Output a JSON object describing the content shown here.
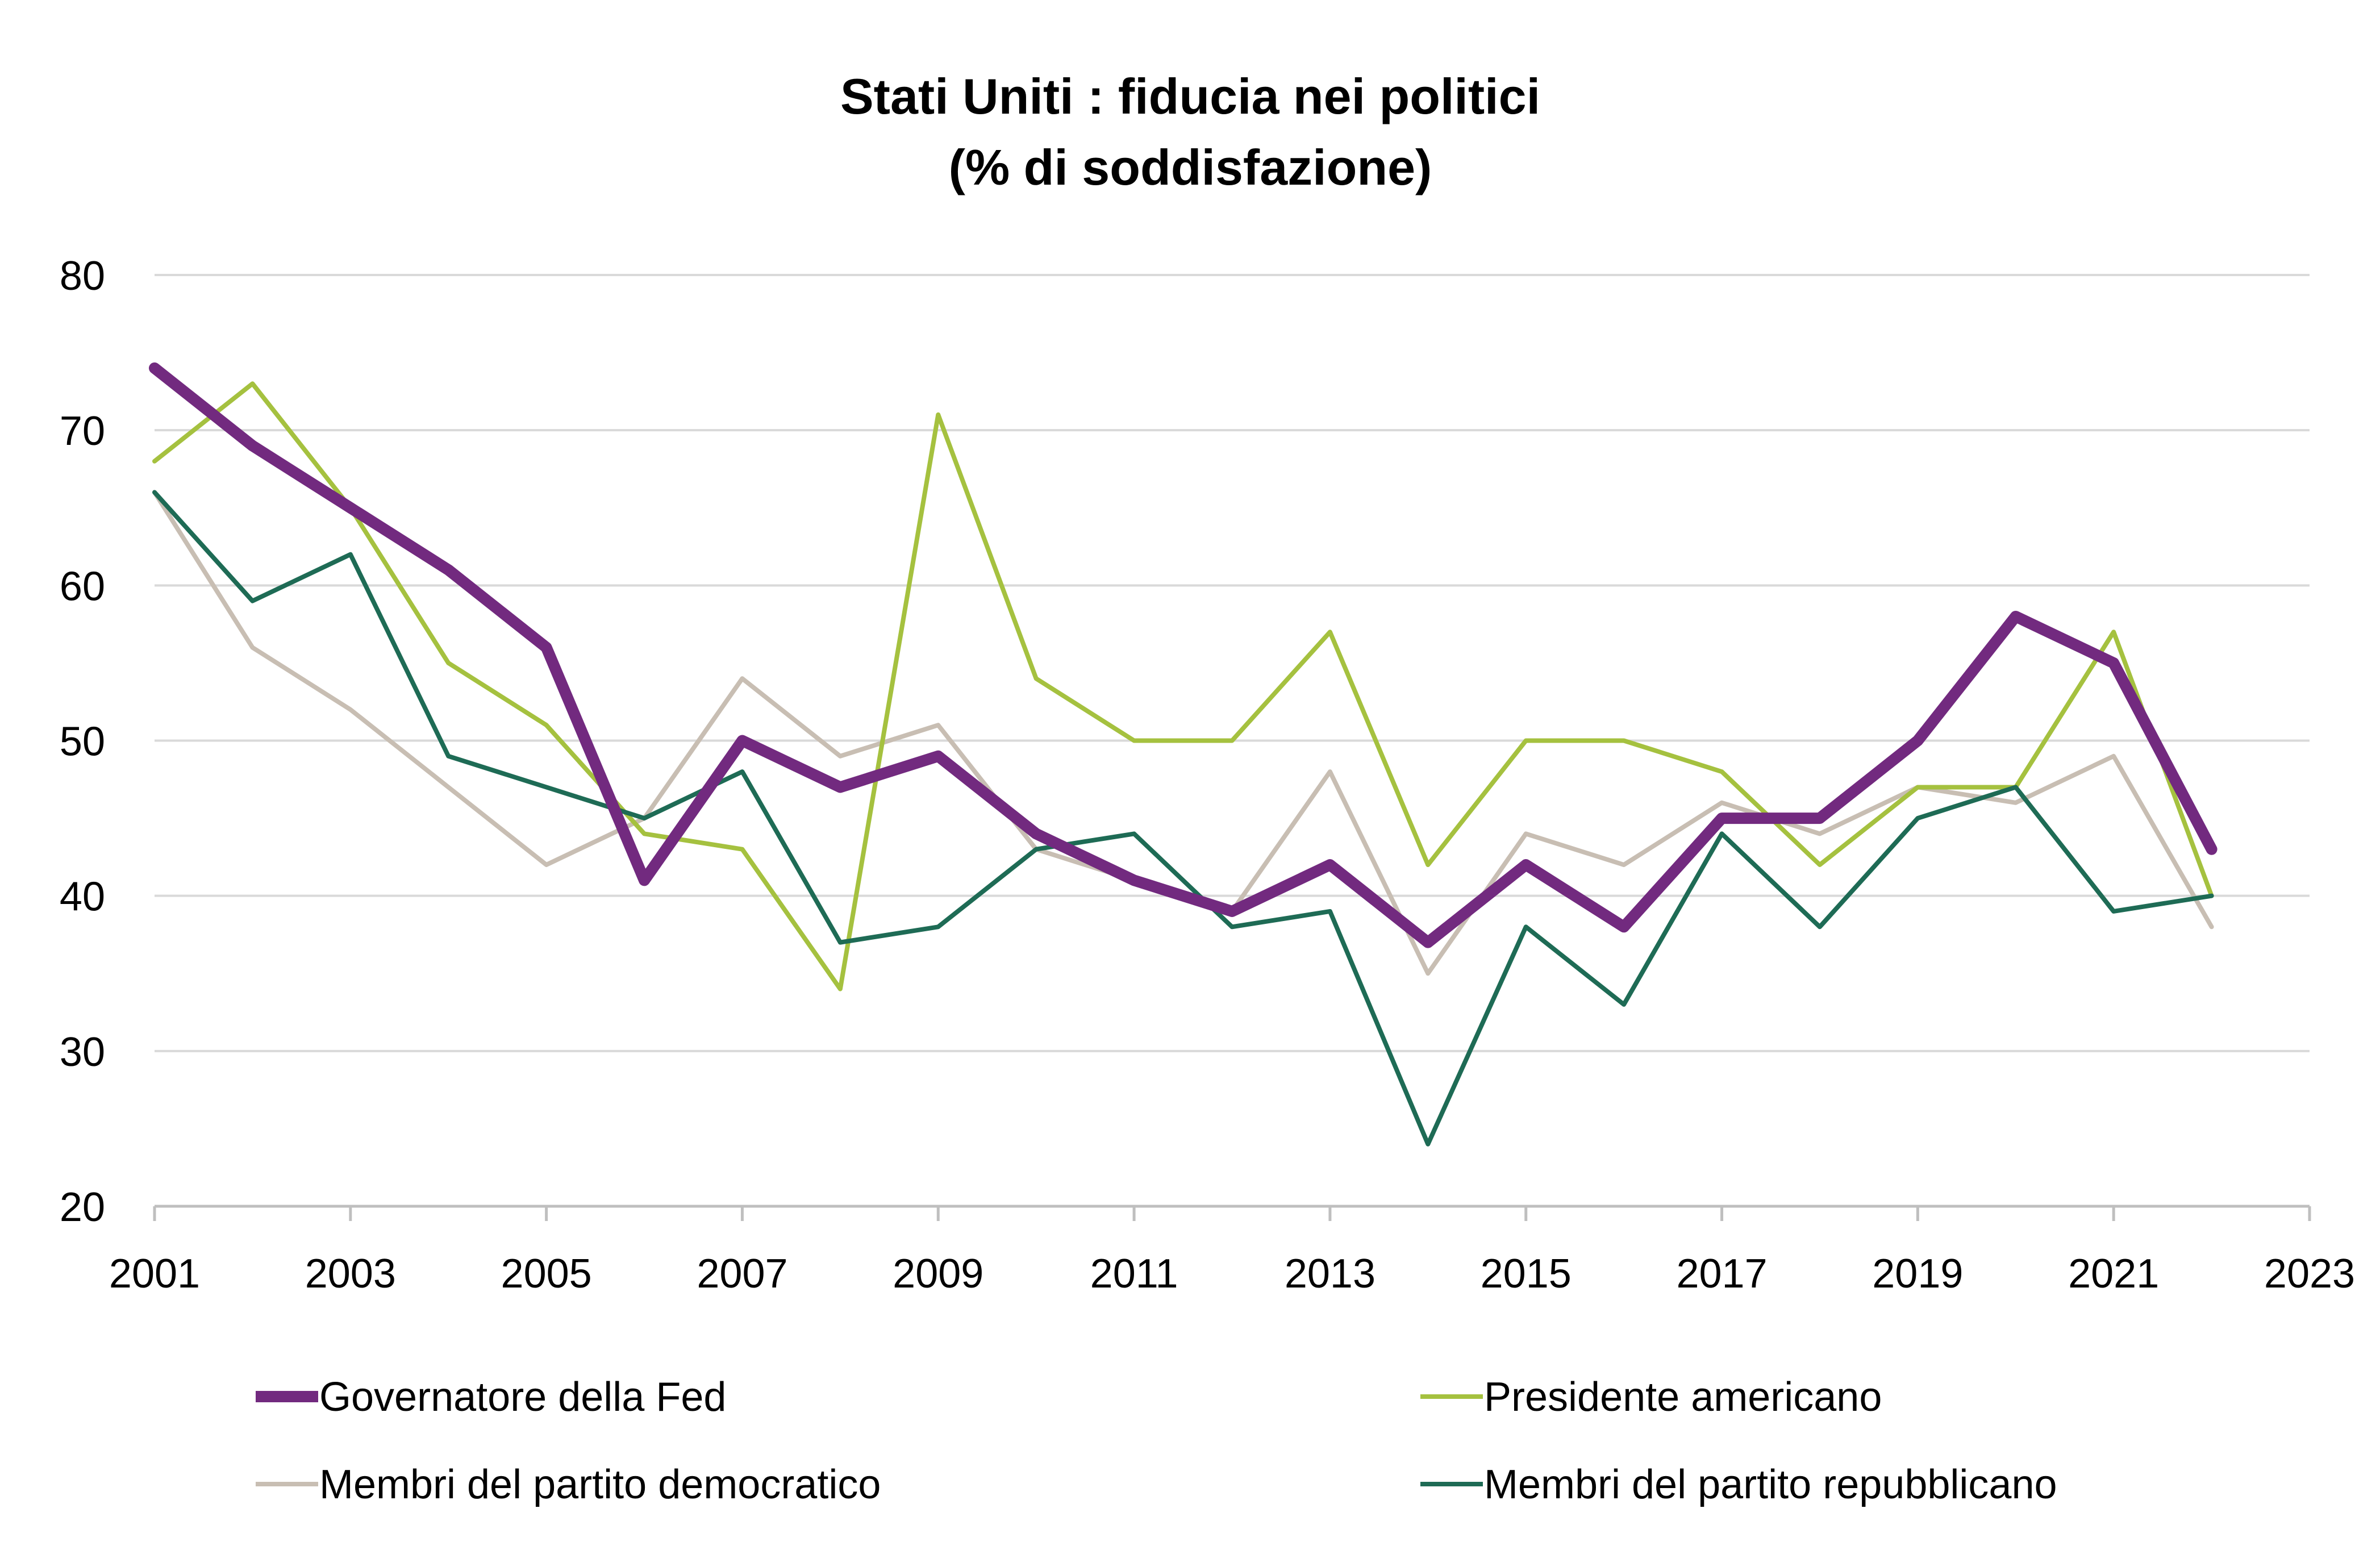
{
  "chart_data": {
    "type": "line",
    "title": "Stati Uniti : fiducia nei politici",
    "subtitle": "(% di soddisfazione)",
    "xlabel": "",
    "ylabel": "",
    "xlim": [
      2001,
      2023
    ],
    "ylim": [
      20,
      80
    ],
    "x_ticks": [
      "2001",
      "2003",
      "2005",
      "2007",
      "2009",
      "2011",
      "2013",
      "2015",
      "2017",
      "2019",
      "2021",
      "2023"
    ],
    "y_ticks": [
      "20",
      "30",
      "40",
      "50",
      "60",
      "70",
      "80"
    ],
    "grid": true,
    "legend_position": "bottom",
    "x": [
      2001,
      2002,
      2003,
      2004,
      2005,
      2006,
      2007,
      2008,
      2009,
      2010,
      2011,
      2012,
      2013,
      2014,
      2015,
      2016,
      2017,
      2018,
      2019,
      2020,
      2021,
      2022
    ],
    "series": [
      {
        "name": "Governatore della Fed",
        "color": "#722a7f",
        "values": [
          74,
          69,
          65,
          61,
          56,
          41,
          50,
          47,
          49,
          44,
          41,
          39,
          42,
          37,
          42,
          38,
          45,
          45,
          50,
          58,
          55,
          43
        ]
      },
      {
        "name": "Presidente americano",
        "color": "#a5c13f",
        "values": [
          68,
          73,
          65,
          55,
          51,
          44,
          43,
          34,
          71,
          54,
          50,
          50,
          57,
          42,
          50,
          50,
          48,
          42,
          47,
          47,
          57,
          40
        ]
      },
      {
        "name": "Membri del partito democratico",
        "color": "#c8beb3",
        "values": [
          66,
          56,
          52,
          47,
          42,
          45,
          54,
          49,
          51,
          43,
          41,
          39,
          48,
          35,
          44,
          42,
          46,
          44,
          47,
          46,
          49,
          38
        ]
      },
      {
        "name": "Membri del partito repubblicano",
        "color": "#1e6b55",
        "values": [
          66,
          59,
          62,
          49,
          47,
          45,
          48,
          37,
          38,
          43,
          44,
          38,
          39,
          24,
          38,
          33,
          44,
          38,
          45,
          47,
          39,
          40
        ]
      }
    ]
  }
}
